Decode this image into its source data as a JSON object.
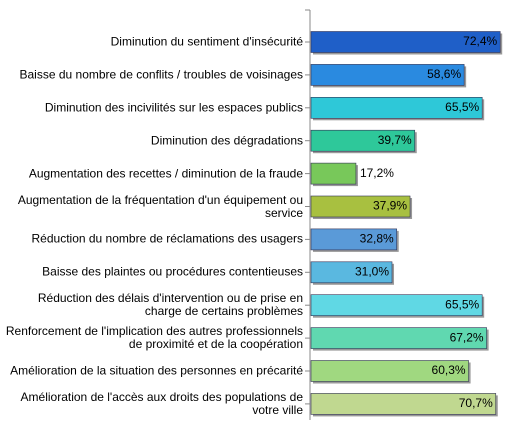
{
  "chart_data": {
    "type": "hbar",
    "categories": [
      "Diminution du sentiment d'insécurité",
      "Baisse du nombre de conflits / troubles de voisinages",
      "Diminution des incivilités sur les espaces publics",
      "Diminution des dégradations",
      "Augmentation des recettes / diminution de la fraude",
      "Augmentation de la fréquentation d'un équipement ou service",
      "Réduction du nombre de réclamations des usagers",
      "Baisse des plaintes ou procédures contentieuses",
      "Réduction des délais d'intervention ou de prise en charge de certains problèmes",
      "Renforcement de l'implication des autres professionnels de proximité et de la coopération",
      "Amélioration de la situation des personnes en précarité",
      "Amélioration de l'accès aux droits des populations de votre ville"
    ],
    "values": [
      72.4,
      58.6,
      65.5,
      39.7,
      17.2,
      37.9,
      32.8,
      31.0,
      65.5,
      67.2,
      60.3,
      70.7
    ],
    "value_labels": [
      "72,4%",
      "58,6%",
      "65,5%",
      "39,7%",
      "17,2%",
      "37,9%",
      "32,8%",
      "31,0%",
      "65,5%",
      "67,2%",
      "60,3%",
      "70,7%"
    ],
    "colors": [
      "#1f5fc8",
      "#2a8ae0",
      "#2ec8d8",
      "#2ec89a",
      "#78c85a",
      "#a8c040",
      "#5a9ad8",
      "#5ab8e0",
      "#60d8e4",
      "#60d8b0",
      "#a0d880",
      "#c0d890"
    ],
    "xlim": [
      0,
      75
    ]
  }
}
